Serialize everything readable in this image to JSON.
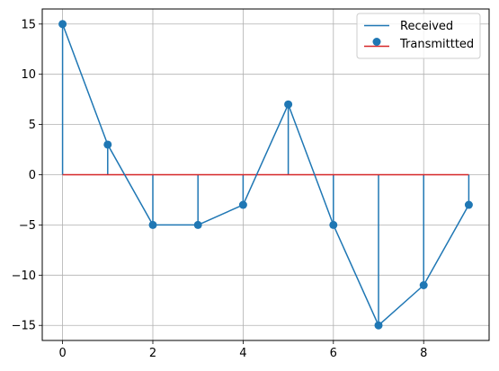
{
  "chart_data": {
    "type": "line",
    "title": "",
    "xlabel": "",
    "ylabel": "",
    "xlim": [
      -0.45,
      9.45
    ],
    "ylim": [
      -16.5,
      16.5
    ],
    "grid": true,
    "legend_position": "top-right",
    "x": [
      0,
      1,
      2,
      3,
      4,
      5,
      6,
      7,
      8,
      9
    ],
    "series": [
      {
        "name": "Received",
        "kind": "line",
        "color": "#1f77b4",
        "values": [
          15,
          3,
          -5,
          -5,
          -3,
          7,
          -5,
          -15,
          -11,
          -3
        ]
      },
      {
        "name": "Transmittted",
        "kind": "stem",
        "marker_color": "#1f77b4",
        "baseline_color": "#d62728",
        "values": [
          15,
          3,
          -5,
          -5,
          -3,
          7,
          -5,
          -15,
          -11,
          -3
        ]
      }
    ],
    "xticks": [
      "0",
      "2",
      "4",
      "6",
      "8"
    ],
    "yticks": [
      "−15",
      "−10",
      "−5",
      "0",
      "5",
      "10",
      "15"
    ]
  },
  "colors": {
    "grid": "#b0b0b0",
    "axes": "#000000"
  }
}
